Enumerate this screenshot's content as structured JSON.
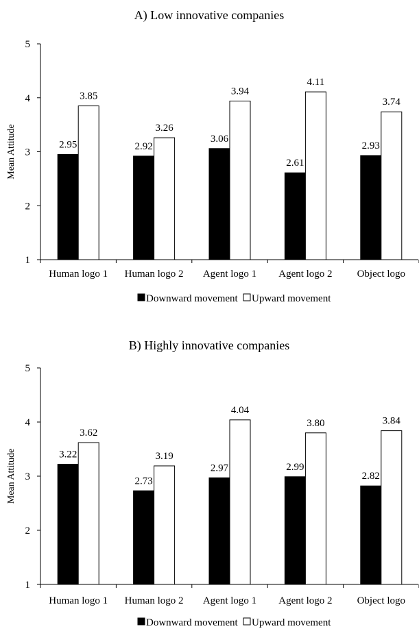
{
  "chart_data": [
    {
      "type": "bar",
      "title": "A) Low innovative companies",
      "ylabel": "Mean Attitude",
      "xlabel": "",
      "ylim": [
        1,
        5
      ],
      "yticks": [
        1,
        2,
        3,
        4,
        5
      ],
      "categories": [
        "Human logo 1",
        "Human logo 2",
        "Agent logo 1",
        "Agent logo 2",
        "Object logo"
      ],
      "series": [
        {
          "name": "Downward movement",
          "color": "#000000",
          "values": [
            2.95,
            2.92,
            3.06,
            2.61,
            2.93
          ],
          "labels": [
            "2.95",
            "2.92",
            "3.06",
            "2.61",
            "2.93"
          ]
        },
        {
          "name": "Upward movement",
          "color": "#ffffff",
          "values": [
            3.85,
            3.26,
            3.94,
            4.11,
            3.74
          ],
          "labels": [
            "3.85",
            "3.26",
            "3.94",
            "4.11",
            "3.74"
          ]
        }
      ],
      "legend": "bottom",
      "grid": false
    },
    {
      "type": "bar",
      "title": "B) Highly innovative companies",
      "ylabel": "Mean Attitude",
      "xlabel": "",
      "ylim": [
        1,
        5
      ],
      "yticks": [
        1,
        2,
        3,
        4,
        5
      ],
      "categories": [
        "Human logo 1",
        "Human logo 2",
        "Agent logo 1",
        "Agent logo 2",
        "Object logo"
      ],
      "series": [
        {
          "name": "Downward movement",
          "color": "#000000",
          "values": [
            3.22,
            2.73,
            2.97,
            2.99,
            2.82
          ],
          "labels": [
            "3.22",
            "2.73",
            "2.97",
            "2.99",
            "2.82"
          ]
        },
        {
          "name": "Upward movement",
          "color": "#ffffff",
          "values": [
            3.62,
            3.19,
            4.04,
            3.8,
            3.84
          ],
          "labels": [
            "3.62",
            "3.19",
            "4.04",
            "3.80",
            "3.84"
          ]
        }
      ],
      "legend": "bottom",
      "grid": false
    }
  ]
}
